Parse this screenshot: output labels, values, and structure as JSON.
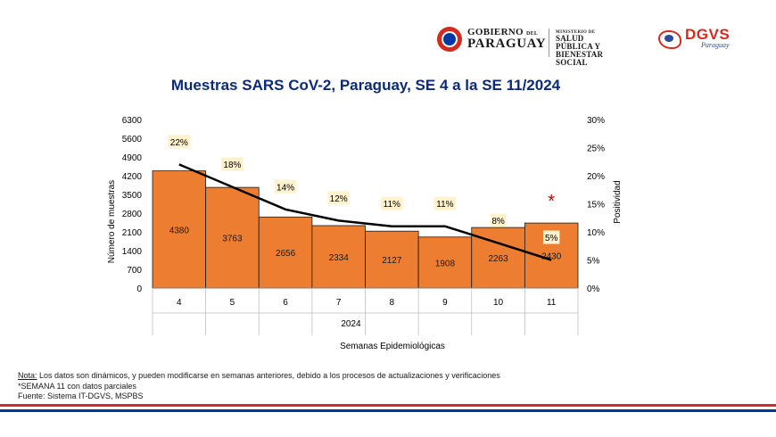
{
  "header": {
    "gov_line1": "GOBIERNO",
    "gov_line1_small": "DEL",
    "gov_line2": "PARAGUAY",
    "ministry_label": "MINISTERIO DE",
    "ministry_line1": "SALUD PÚBLICA Y",
    "ministry_line2": "BIENESTAR SOCIAL",
    "dgvs_title": "DGVS",
    "dgvs_sub": "Paraguay"
  },
  "chart_data": {
    "type": "bar",
    "title": "Muestras SARS CoV-2, Paraguay, SE 4 a la SE 11/2024",
    "categories": [
      "4",
      "5",
      "6",
      "7",
      "8",
      "9",
      "10",
      "11"
    ],
    "group_label": "2024",
    "xlabel": "Semanas Epidemiológicas",
    "ylabel": "Número de muestras",
    "y2label": "Positividad",
    "ylim": [
      0,
      6300
    ],
    "yticks": [
      0,
      700,
      1400,
      2100,
      2800,
      3500,
      4200,
      4900,
      5600,
      6300
    ],
    "y2lim": [
      0,
      30
    ],
    "y2ticks": [
      "0%",
      "5%",
      "10%",
      "15%",
      "20%",
      "25%",
      "30%"
    ],
    "series": [
      {
        "name": "Muestras",
        "type": "bar",
        "values": [
          4380,
          3763,
          2656,
          2334,
          2127,
          1908,
          2263,
          2430
        ]
      },
      {
        "name": "Positividad",
        "type": "line",
        "values": [
          22,
          18,
          14,
          12,
          11,
          11,
          8,
          5
        ]
      }
    ],
    "line_labels": [
      "22%",
      "18%",
      "14%",
      "12%",
      "11%",
      "11%",
      "8%",
      "5%"
    ],
    "annotation": "*",
    "colors": {
      "bar": "#ed7d31",
      "bar_edge": "#1a1a1a",
      "line": "#000000",
      "label_bg": "#fff2cc",
      "title": "#0b2b7a",
      "asterisk": "#c00000"
    }
  },
  "notes": {
    "label": "Nota:",
    "line1": " Los datos son dinámicos, y pueden modificarse en semanas anteriores, debido a los procesos de actualizaciones y verificaciones",
    "line2": "*SEMANA 11  con datos parciales",
    "line3": "Fuente: Sistema IT-DGVS, MSPBS"
  }
}
